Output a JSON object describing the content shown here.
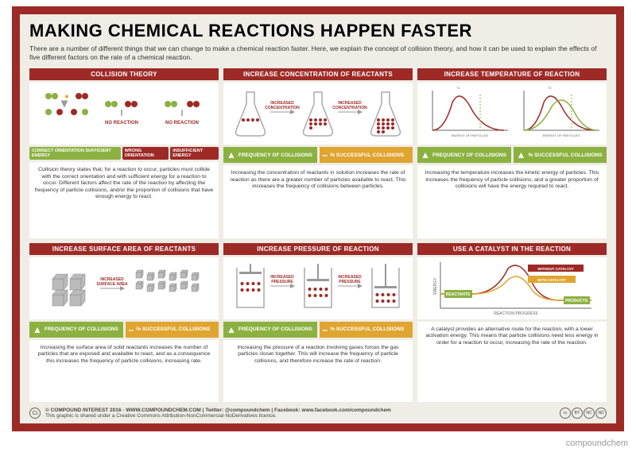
{
  "colors": {
    "brand": "#9d2a26",
    "green": "#8bb140",
    "orange": "#e0a430",
    "bg": "#f0ede6",
    "gray": "#999"
  },
  "title": "MAKING CHEMICAL REACTIONS HAPPEN FASTER",
  "intro": "There are a number of different things that we can change to make a chemical reaction faster. Here, we explain the concept of collision theory, and how it can be used to explain the effects of five different factors on the rate of a chemical reaction.",
  "panels": [
    {
      "head": "COLLISION THEORY",
      "tags": [
        {
          "text": "CORRECT ORIENTATION SUFFICIENT ENERGY",
          "color": "#8bb140"
        },
        {
          "text": "WRONG ORIENTATION",
          "color": "#9d2a26"
        },
        {
          "text": "INSUFFICIENT ENERGY",
          "color": "#9d2a26"
        }
      ],
      "badges": null,
      "desc": "Collision theory states that, for a reaction to occur, particles must collide with the correct orientation and with sufficient energy for a reaction to occur. Different factors affect the rate of the reaction by affecting the frequency of particle collisions, and/or the proportion of collisions that have enough energy to react."
    },
    {
      "head": "INCREASE CONCENTRATION OF REACTANTS",
      "labels": [
        "INCREASED CONCENTRATION",
        "INCREASED CONCENTRATION"
      ],
      "badges": [
        {
          "type": "up",
          "text": "FREQUENCY OF COLLISIONS"
        },
        {
          "type": "same",
          "text": "% SUCCESSFUL COLLISIONS"
        }
      ],
      "desc": "Increasing the concentration of reactants in solution increases the rate of reaction as there are a greater number of particles available to react. This increases the frequency of collisions between particles."
    },
    {
      "head": "INCREASE TEMPERATURE OF REACTION",
      "labels": [
        "T₁: ROOM TEMPERATURE",
        "T₂: ROOM TEMPERATURE + 20°C",
        "PARTICLES WITH ENERGY REQUIRED TO REACT",
        "ENERGY OF PARTICLES",
        "% OF PARTICLES"
      ],
      "badges": [
        {
          "type": "up",
          "text": "FREQUENCY OF COLLISIONS"
        },
        {
          "type": "up",
          "text": "% SUCCESSFUL COLLISIONS"
        }
      ],
      "desc": "Increasing the temperature increases the kinetic energy of particles. This increases the frequency of particle collisions, and a greater proportion of collisions will have the energy required to react."
    },
    {
      "head": "INCREASE SURFACE AREA OF REACTANTS",
      "labels": [
        "INCREASED SURFACE AREA"
      ],
      "badges": [
        {
          "type": "up",
          "text": "FREQUENCY OF COLLISIONS"
        },
        {
          "type": "same",
          "text": "% SUCCESSFUL COLLISIONS"
        }
      ],
      "desc": "Increasing the surface area of solid reactants increases the number of particles that are exposed and available to react, and as a consequence this increases the frequency of particle collisions, increasing rate."
    },
    {
      "head": "INCREASE PRESSURE OF REACTION",
      "labels": [
        "INCREASED PRESSURE",
        "INCREASED PRESSURE"
      ],
      "badges": [
        {
          "type": "up",
          "text": "FREQUENCY OF COLLISIONS"
        },
        {
          "type": "same",
          "text": "% SUCCESSFUL COLLISIONS"
        }
      ],
      "desc": "Increasing the pressure of a reaction involving gases forces the gas particles closer together. This will increase the frequency of particle collisions, and therefore increase the rate of reaction."
    },
    {
      "head": "USE A CATALYST IN THE REACTION",
      "labels": [
        "WITHOUT CATALYST",
        "WITH CATALYST",
        "REACTANTS",
        "PRODUCTS",
        "Eₐ = ACTIVATION ENERGY",
        "ENERGY",
        "REACTION PROGRESS"
      ],
      "badges": null,
      "desc": "A catalyst provides an alternative route for the reaction, with a lower activation energy. This means that particle collisions need less energy in order for a reaction to occur, increasing the rate of the reaction."
    }
  ],
  "footer": {
    "copyright": "© COMPOUND INTEREST 2016 - WWW.COMPOUNDCHEM.COM | Twitter: @compoundchem | Facebook: www.facebook.com/compoundchem",
    "license": "This graphic is shared under a Creative Commons Attribution-NonCommercial-NoDerivatives licence.",
    "cc": [
      "cc",
      "BY",
      "NC",
      "ND"
    ]
  },
  "watermark": "compoundchem"
}
